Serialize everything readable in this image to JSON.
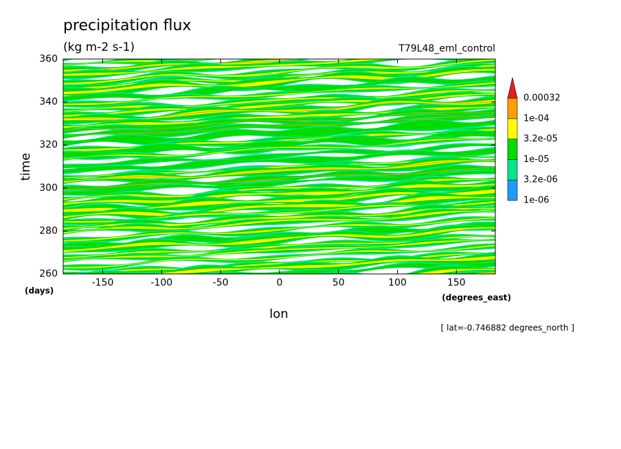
{
  "chart_data": {
    "type": "contour",
    "title": "precipitation flux",
    "subtitle": "(kg m-2 s-1)",
    "annotation": "T79L48_eml_control",
    "footnote": "[ lat=-0.746882 degrees_north ]",
    "x_label": "lon",
    "x_units": "(degrees_east)",
    "y_label": "time",
    "y_units": "(days)",
    "xlim": [
      -183.5,
      183
    ],
    "xticks": [
      -150,
      -100,
      -50,
      0,
      50,
      100,
      150
    ],
    "ylim": [
      260,
      360
    ],
    "yticks": [
      260,
      280,
      300,
      320,
      340,
      360
    ],
    "levels": [
      {
        "value": 1e-06,
        "label": "1e-06"
      },
      {
        "value": 3.2e-06,
        "label": "3.2e-06"
      },
      {
        "value": 1e-05,
        "label": "1e-05"
      },
      {
        "value": 3.2e-05,
        "label": "3.2e-05"
      },
      {
        "value": 0.0001,
        "label": "1e-04"
      },
      0.00032
    ],
    "colors": [
      "#1e9bff",
      "#00e68c",
      "#00dc00",
      "#ffff00",
      "#ffa000"
    ],
    "extend_color": "#e61e1e"
  }
}
